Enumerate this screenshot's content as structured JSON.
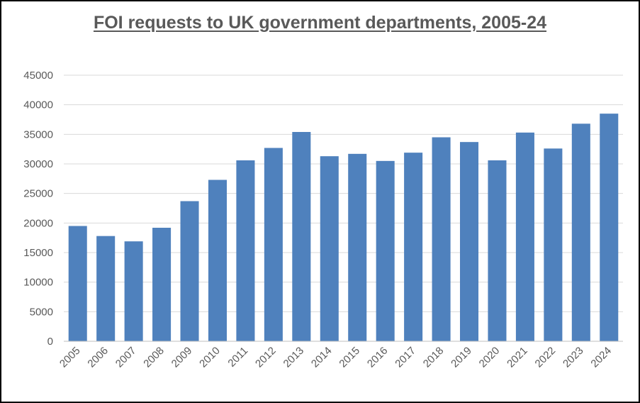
{
  "chart_data": {
    "type": "bar",
    "title": "FOI requests to UK government departments,  2005-24",
    "xlabel": "",
    "ylabel": "",
    "ylim": [
      0,
      45000
    ],
    "yticks": [
      0,
      5000,
      10000,
      15000,
      20000,
      25000,
      30000,
      35000,
      40000,
      45000
    ],
    "grid": true,
    "categories": [
      "2005",
      "2006",
      "2007",
      "2008",
      "2009",
      "2010",
      "2011",
      "2012",
      "2013",
      "2014",
      "2015",
      "2016",
      "2017",
      "2018",
      "2019",
      "2020",
      "2021",
      "2022",
      "2023",
      "2024"
    ],
    "series": [
      {
        "name": "FOI requests",
        "color": "#4f81bd",
        "values": [
          19500,
          17800,
          16900,
          19200,
          23700,
          27300,
          30600,
          32700,
          35400,
          31300,
          31700,
          30500,
          31900,
          34500,
          33700,
          30600,
          35300,
          32600,
          36800,
          38500
        ]
      }
    ]
  }
}
